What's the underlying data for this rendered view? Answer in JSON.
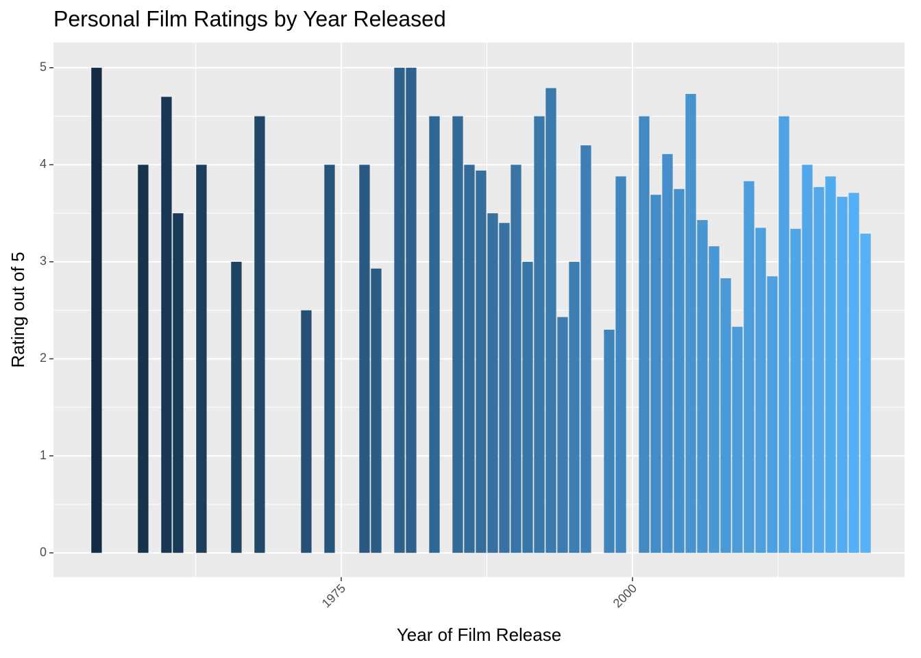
{
  "chart_data": {
    "type": "bar",
    "title": "Personal Film Ratings by Year Released",
    "x_label": "Year of Film Release",
    "y_label": "Rating out of 5",
    "x": [
      1954,
      1958,
      1960,
      1961,
      1963,
      1966,
      1968,
      1972,
      1974,
      1977,
      1978,
      1980,
      1981,
      1983,
      1985,
      1986,
      1987,
      1988,
      1989,
      1990,
      1991,
      1992,
      1993,
      1994,
      1995,
      1996,
      1998,
      1999,
      2001,
      2002,
      2003,
      2004,
      2005,
      2006,
      2007,
      2008,
      2009,
      2010,
      2011,
      2012,
      2013,
      2014,
      2015,
      2016,
      2017,
      2018,
      2019,
      2020
    ],
    "values": [
      5,
      4,
      4.7,
      3.5,
      4,
      3,
      4.5,
      2.5,
      4,
      4,
      2.93,
      5,
      5,
      4.5,
      4.5,
      4,
      3.94,
      3.5,
      3.4,
      4,
      3,
      4.5,
      4.79,
      2.43,
      3,
      4.2,
      2.3,
      3.88,
      4.5,
      3.69,
      4.11,
      3.75,
      4.73,
      3.43,
      3.16,
      2.83,
      2.33,
      3.83,
      3.35,
      2.85,
      4.5,
      3.34,
      4,
      3.77,
      3.88,
      3.67,
      3.71,
      3.29
    ],
    "color_low": "#132B43",
    "color_high": "#56B1F7",
    "xlim": [
      1950.3,
      2023.35
    ],
    "xticks": [
      1975,
      2000
    ],
    "xminor": [
      1962.5,
      1987.5,
      2012.5
    ],
    "ylim": [
      -0.25,
      5.26
    ],
    "yticks": [
      0,
      1,
      2,
      3,
      4,
      5
    ],
    "yminor": [
      0.5,
      1.5,
      2.5,
      3.5,
      4.5
    ],
    "grid": true
  }
}
